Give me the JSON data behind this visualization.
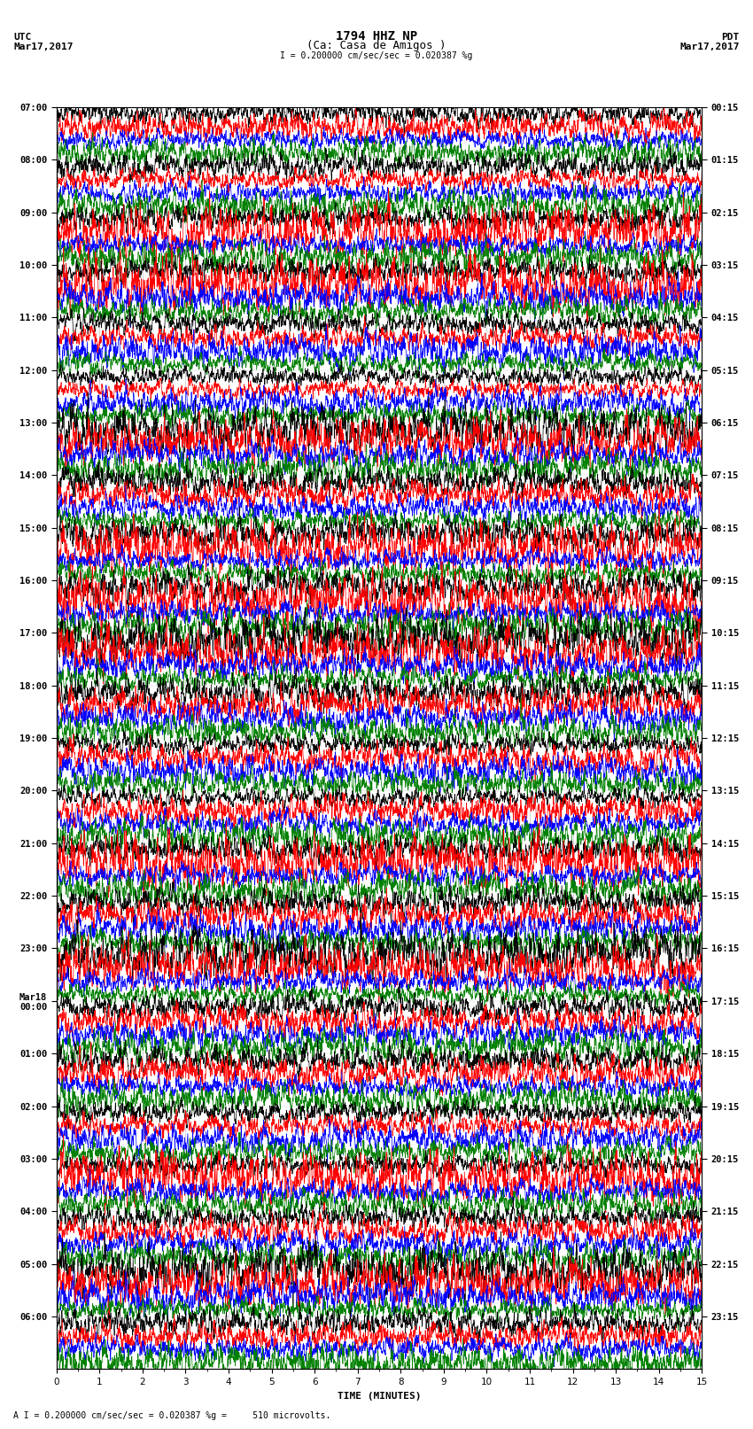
{
  "title_line1": "1794 HHZ NP",
  "title_line2": "(Ca: Casa de Amigos )",
  "scale_label": "I = 0.200000 cm/sec/sec = 0.020387 %g",
  "footer_label": "A I = 0.200000 cm/sec/sec = 0.020387 %g =     510 microvolts.",
  "utc_label": "UTC",
  "utc_date": "Mar17,2017",
  "pdt_label": "PDT",
  "pdt_date": "Mar17,2017",
  "xlabel": "TIME (MINUTES)",
  "left_times": [
    "07:00",
    "08:00",
    "09:00",
    "10:00",
    "11:00",
    "12:00",
    "13:00",
    "14:00",
    "15:00",
    "16:00",
    "17:00",
    "18:00",
    "19:00",
    "20:00",
    "21:00",
    "22:00",
    "23:00",
    "Mar18\n00:00",
    "01:00",
    "02:00",
    "03:00",
    "04:00",
    "05:00",
    "06:00"
  ],
  "right_times": [
    "00:15",
    "01:15",
    "02:15",
    "03:15",
    "04:15",
    "05:15",
    "06:15",
    "07:15",
    "08:15",
    "09:15",
    "10:15",
    "11:15",
    "12:15",
    "13:15",
    "14:15",
    "15:15",
    "16:15",
    "17:15",
    "18:15",
    "19:15",
    "20:15",
    "21:15",
    "22:15",
    "23:15"
  ],
  "trace_colors": [
    "black",
    "red",
    "blue",
    "green"
  ],
  "n_rows": 24,
  "minutes": 15,
  "bg_color": "white",
  "title_fontsize": 10,
  "label_fontsize": 8,
  "tick_fontsize": 7.5
}
